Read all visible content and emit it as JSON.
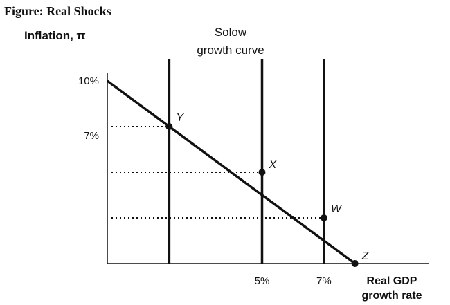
{
  "figure_title": "Figure: Real Shocks",
  "chart_data": {
    "type": "line",
    "ylabel": "Inflation, π",
    "xlabel_line1": "Real GDP",
    "xlabel_line2": "growth rate",
    "curve_label_line1": "Solow",
    "curve_label_line2": "growth curve",
    "y_ticks": [
      {
        "value": 10,
        "label": "10%"
      },
      {
        "value": 7,
        "label": "7%"
      }
    ],
    "x_ticks": [
      {
        "value": 5,
        "label": "5%"
      },
      {
        "value": 7,
        "label": "7%"
      }
    ],
    "xlim": [
      0,
      9
    ],
    "ylim": [
      0,
      11
    ],
    "ad_line": [
      [
        0,
        10
      ],
      [
        8,
        0
      ]
    ],
    "solow_lines": [
      2,
      5,
      7
    ],
    "points": [
      {
        "name": "Y",
        "x": 2,
        "y": 7.5
      },
      {
        "name": "X",
        "x": 5,
        "y": 5
      },
      {
        "name": "W",
        "x": 7,
        "y": 2.5
      },
      {
        "name": "Z",
        "x": 8,
        "y": 0
      }
    ]
  }
}
